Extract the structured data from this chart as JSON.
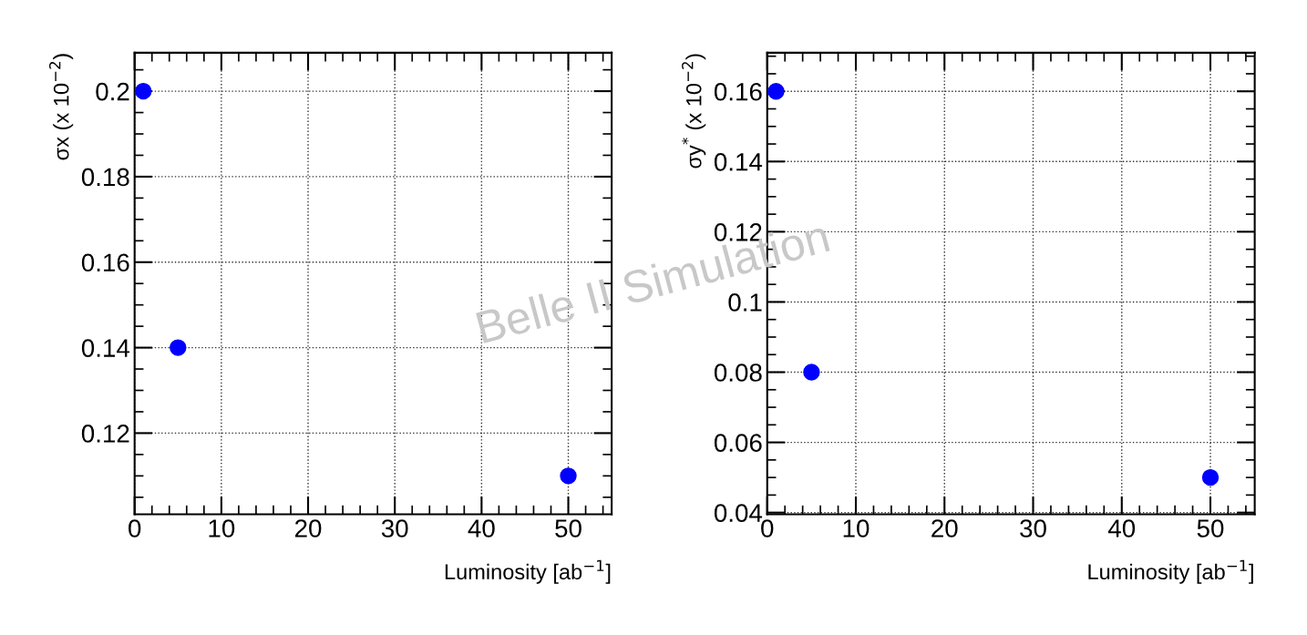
{
  "chart_data": [
    {
      "type": "scatter",
      "x": [
        1,
        5,
        50
      ],
      "values": [
        0.2,
        0.14,
        0.11
      ],
      "color": "#0000ff",
      "marker": "circle",
      "xlabel": "Luminosity [ab$^{−1}$]",
      "ylabel": "σx (x 10$^{−2}$)",
      "xlim": [
        0,
        55
      ],
      "ylim": [
        0.101,
        0.209
      ],
      "xticks": [
        0,
        10,
        20,
        30,
        40,
        50
      ],
      "yticks": [
        0.12,
        0.14,
        0.16,
        0.18,
        0.2
      ],
      "grid": true,
      "annotations": [
        "Belle II Simulation"
      ]
    },
    {
      "type": "scatter",
      "x": [
        1,
        5,
        50
      ],
      "values": [
        0.16,
        0.08,
        0.05
      ],
      "color": "#0000ff",
      "marker": "circle",
      "xlabel": "Luminosity [ab$^{−1}$]",
      "ylabel": "σy$^{*}$ (x 10$^{−2}$)",
      "xlim": [
        0,
        55
      ],
      "ylim": [
        0.0395,
        0.171
      ],
      "xticks": [
        0,
        10,
        20,
        30,
        40,
        50
      ],
      "yticks": [
        0.04,
        0.06,
        0.08,
        0.1,
        0.12,
        0.14,
        0.16
      ],
      "grid": true
    }
  ]
}
